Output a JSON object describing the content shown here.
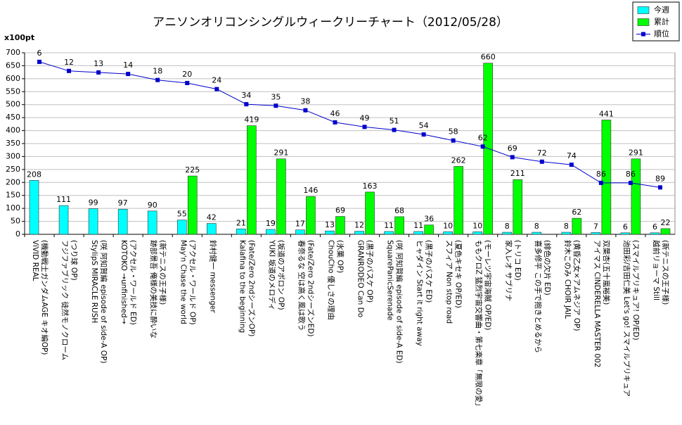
{
  "chart_data": {
    "type": "bar",
    "title": "アニソンオリコンシングルウィークリーチャート（2012/05/28）",
    "y_label": "x100pt",
    "categories": [
      [
        "ViVID REAL",
        "(機動戦士ガンダムAGE キオ編OP)"
      ],
      [
        "フジファブリック 徒然モノクローム",
        "(つり球 OP)"
      ],
      [
        "StylipS MIRACLE RUSH",
        "(咲 阿知賀編 episode of side-A OP)"
      ],
      [
        "KOTOKO →unfinished→",
        "(アクセル・ワールド ED)"
      ],
      [
        "跡部景吾 俺様の美技に酔いな",
        "(新テニスの王子様)"
      ],
      [
        "May'n Chase the world",
        "(アクセル・ワールド OP)"
      ],
      [
        "鈴村健一 messenger"
      ],
      [
        "Kalafina to the beginning",
        "(Fate/Zero 2ndシーズンOP)"
      ],
      [
        "YUKI 坂道のメロディ",
        "(坂道のアポロン OP)"
      ],
      [
        "春奈るな 空は高く風は歌う",
        "(Fate/Zero 2ndシーズンED)"
      ],
      [
        "ChouCho 優しさの理由",
        "(氷菓 OP)"
      ],
      [
        "GRANRODEO Can Do",
        "(黒子のバスケ OP)"
      ],
      [
        "SquarePanicSerenade",
        "(咲 阿知賀編 episode of side-A ED)"
      ],
      [
        "ヒャダイン Start it right away",
        "(黒子のバスケ ED)"
      ],
      [
        "スフィア Non stop road",
        "(夏色キセキ OP/ED)"
      ],
      [
        "ももクロZ 猛烈宇宙交響曲・第七楽章「無限の愛」",
        "(モーレツ宇宙海賊 OP/ED)"
      ],
      [
        "家入レオ サブリナ",
        "(トリコ ED)"
      ],
      [
        "喜多修平 この手で抱きとめるから",
        "(緋色の欠片 ED)"
      ],
      [
        "鈴木このみ CHOIR JAIL",
        "(黄昏乙女×アムネジア OP)"
      ],
      [
        "アイマス CINDERELLA MASTER 002",
        "双葉杏(五十嵐裕美)"
      ],
      [
        "池田彩/吉田仁美 Let's go! スマイルプリキュア",
        "(スマイルプリキュア! OP/ED)"
      ],
      [
        "越前リョーマ Still",
        "(新テニスの王子様)"
      ]
    ],
    "series": [
      {
        "name": "今週",
        "color": "#00ffff",
        "values": [
          208,
          111,
          99,
          97,
          90,
          55,
          42,
          21,
          19,
          17,
          13,
          12,
          11,
          11,
          10,
          10,
          8,
          8,
          8,
          7,
          6,
          6
        ]
      },
      {
        "name": "累計",
        "color": "#00ff00",
        "values": [
          null,
          null,
          null,
          null,
          null,
          225,
          null,
          419,
          291,
          146,
          69,
          163,
          68,
          36,
          262,
          660,
          211,
          null,
          62,
          441,
          291,
          22
        ]
      },
      {
        "name": "順位",
        "color": "#0000cc",
        "type": "line",
        "axis": "y2",
        "values": [
          6,
          12,
          13,
          14,
          18,
          20,
          24,
          34,
          35,
          38,
          46,
          49,
          51,
          54,
          58,
          62,
          69,
          72,
          74,
          86,
          86,
          89
        ]
      }
    ],
    "ylim": [
      0,
      700
    ],
    "yticks": [
      0,
      50,
      100,
      150,
      200,
      250,
      300,
      350,
      400,
      450,
      500,
      550,
      600,
      650,
      700
    ],
    "y2lim": [
      120,
      0
    ],
    "grid": true,
    "legend": "top-right"
  }
}
